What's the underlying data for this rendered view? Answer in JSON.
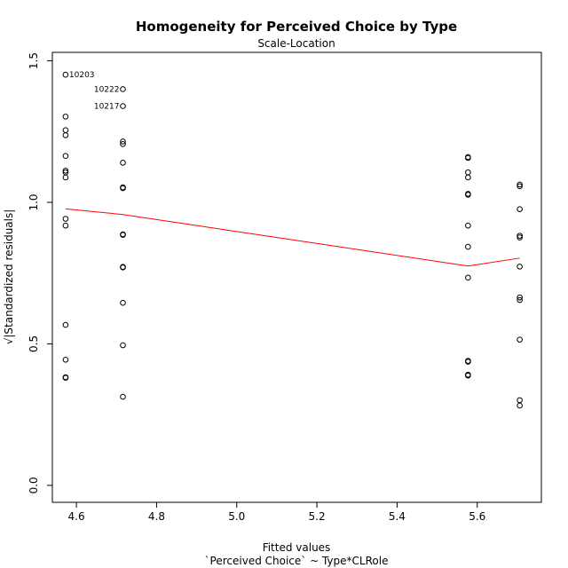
{
  "chart_data": {
    "type": "scatter",
    "title": "Homogeneity for Perceived Choice by Type",
    "subtitle": "Scale-Location",
    "xlabel": "Fitted values",
    "xlabel2": "`Perceived Choice` ~ Type*CLRole",
    "ylabel": "√|Standardized residuals|",
    "xlim": [
      4.54,
      5.76
    ],
    "ylim": [
      -0.06,
      1.53
    ],
    "xticks": [
      4.6,
      4.8,
      5.0,
      5.2,
      5.4,
      5.6
    ],
    "xtick_labels": [
      "4.6",
      "4.8",
      "5.0",
      "5.2",
      "5.4",
      "5.6"
    ],
    "yticks": [
      0.0,
      0.5,
      1.0,
      1.5
    ],
    "ytick_labels": [
      "0.0",
      "0.5",
      "1.0",
      "1.5"
    ],
    "grid": false,
    "series": [
      {
        "points": [
          [
            4.573,
            1.451
          ],
          [
            4.573,
            1.303
          ],
          [
            4.573,
            1.255
          ],
          [
            4.573,
            1.237
          ],
          [
            4.573,
            1.164
          ],
          [
            4.573,
            1.112
          ],
          [
            4.573,
            1.106
          ],
          [
            4.573,
            1.088
          ],
          [
            4.573,
            0.942
          ],
          [
            4.573,
            0.918
          ],
          [
            4.573,
            0.567
          ],
          [
            4.573,
            0.444
          ],
          [
            4.573,
            0.382
          ],
          [
            4.573,
            0.38
          ],
          [
            4.716,
            1.4
          ],
          [
            4.716,
            1.34
          ],
          [
            4.716,
            1.215
          ],
          [
            4.716,
            1.206
          ],
          [
            4.716,
            1.14
          ],
          [
            4.716,
            1.053
          ],
          [
            4.716,
            1.05
          ],
          [
            4.716,
            0.887
          ],
          [
            4.716,
            0.885
          ],
          [
            4.716,
            0.772
          ],
          [
            4.716,
            0.77
          ],
          [
            4.716,
            0.645
          ],
          [
            4.716,
            0.495
          ],
          [
            4.716,
            0.313
          ],
          [
            5.577,
            1.16
          ],
          [
            5.577,
            1.157
          ],
          [
            5.577,
            1.106
          ],
          [
            5.577,
            1.088
          ],
          [
            5.577,
            1.03
          ],
          [
            5.577,
            1.027
          ],
          [
            5.577,
            0.918
          ],
          [
            5.577,
            0.843
          ],
          [
            5.577,
            0.734
          ],
          [
            5.577,
            0.44
          ],
          [
            5.577,
            0.437
          ],
          [
            5.577,
            0.391
          ],
          [
            5.577,
            0.388
          ],
          [
            5.706,
            1.063
          ],
          [
            5.706,
            1.057
          ],
          [
            5.706,
            0.976
          ],
          [
            5.706,
            0.882
          ],
          [
            5.706,
            0.876
          ],
          [
            5.706,
            0.773
          ],
          [
            5.706,
            0.664
          ],
          [
            5.706,
            0.655
          ],
          [
            5.706,
            0.515
          ],
          [
            5.706,
            0.301
          ],
          [
            5.706,
            0.282
          ]
        ]
      },
      {
        "type": "line",
        "color": "#ff0000",
        "x": [
          4.573,
          4.716,
          5.577,
          5.706
        ],
        "y": [
          0.977,
          0.957,
          0.775,
          0.803
        ]
      }
    ],
    "annotations": [
      {
        "text": "10203",
        "x": 4.573,
        "y": 1.451,
        "side": "right"
      },
      {
        "text": "10222",
        "x": 4.716,
        "y": 1.4,
        "side": "left"
      },
      {
        "text": "10217",
        "x": 4.716,
        "y": 1.34,
        "side": "left"
      }
    ],
    "colors": {
      "points": "#000000",
      "smoother": "#ff0000"
    }
  }
}
